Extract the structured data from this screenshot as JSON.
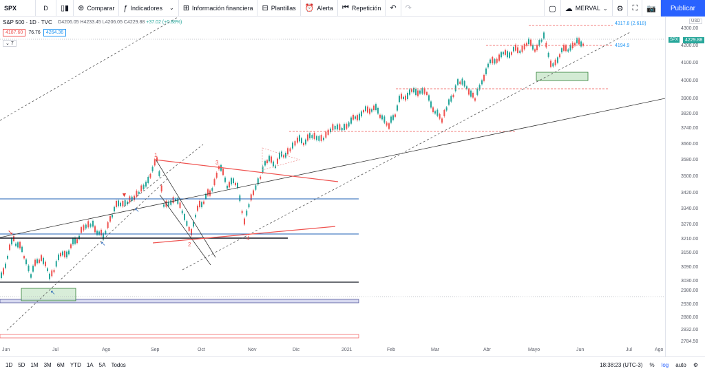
{
  "toolbar": {
    "symbol": "SPX",
    "resolution": "D",
    "compare": "Comparar",
    "indicators": "Indicadores",
    "financials": "Información financiera",
    "templates": "Plantillas",
    "alert": "Alerta",
    "replay": "Repetición",
    "layout_name": "MERVAL",
    "publish": "Publicar"
  },
  "legend": {
    "title": "S&P 500",
    "interval": "1D",
    "source": "TVC",
    "o": "O4206.05",
    "h": "H4233.45",
    "l": "L4206.05",
    "c": "C4229.88",
    "chg": "+37.02 (+0.88%)",
    "bid": "4187.60",
    "spread": "76.76",
    "ask": "4264.36",
    "collapsed": "7"
  },
  "price_axis": {
    "currency": "USD",
    "ticks": [
      "4300.00",
      "4200.00",
      "4100.00",
      "4000.00",
      "3900.00",
      "3820.00",
      "3740.00",
      "3660.00",
      "3580.00",
      "3500.00",
      "3420.00",
      "3340.00",
      "3270.00",
      "3210.00",
      "3150.00",
      "3090.00",
      "3030.00",
      "2980.00",
      "2930.00",
      "2880.00",
      "2832.00",
      "2784.50"
    ],
    "last_price": "4229.88",
    "symbol_tag": "SPX"
  },
  "annotations": {
    "fib_top": "4317.8 (2.618)",
    "fib_mid": "4194.9",
    "wave1": "1",
    "wave2": "2",
    "wave3": "3",
    "wave4": "4"
  },
  "time_axis": [
    "Jun",
    "Jul",
    "Ago",
    "Sep",
    "Oct",
    "Nov",
    "Dic",
    "2021",
    "Feb",
    "Mar",
    "Abr",
    "Mayo",
    "Jun",
    "Jul",
    "Ago"
  ],
  "bottom_bar": {
    "ranges": [
      "1D",
      "5D",
      "1M",
      "3M",
      "6M",
      "YTD",
      "1A",
      "5A",
      "Todos"
    ],
    "time": "18:38:23 (UTC-3)",
    "percent": "%",
    "log": "log",
    "auto": "auto"
  },
  "colors": {
    "up": "#26a69a",
    "down": "#ef5350",
    "accent": "#2962ff",
    "fib": "#2196f3"
  }
}
